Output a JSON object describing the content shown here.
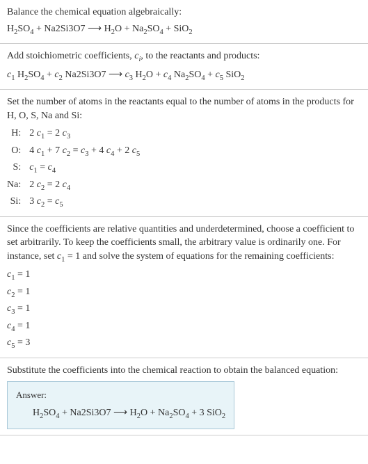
{
  "section1": {
    "heading": "Balance the chemical equation algebraically:",
    "equation_html": "H<sub>2</sub>SO<sub>4</sub> + Na2Si3O7 ⟶ H<sub>2</sub>O + Na<sub>2</sub>SO<sub>4</sub> + SiO<sub>2</sub>"
  },
  "section2": {
    "heading_html": "Add stoichiometric coefficients, <span class=\"italic\">c<sub>i</sub></span>, to the reactants and products:",
    "equation_html": "<span class=\"italic\">c</span><sub>1</sub> H<sub>2</sub>SO<sub>4</sub> + <span class=\"italic\">c</span><sub>2</sub> Na2Si3O7 ⟶ <span class=\"italic\">c</span><sub>3</sub> H<sub>2</sub>O + <span class=\"italic\">c</span><sub>4</sub> Na<sub>2</sub>SO<sub>4</sub> + <span class=\"italic\">c</span><sub>5</sub> SiO<sub>2</sub>"
  },
  "section3": {
    "heading": "Set the number of atoms in the reactants equal to the number of atoms in the products for H, O, S, Na and Si:",
    "atoms": [
      {
        "label": "H:",
        "eq_html": "2 <span class=\"italic\">c</span><sub>1</sub> = 2 <span class=\"italic\">c</span><sub>3</sub>"
      },
      {
        "label": "O:",
        "eq_html": "4 <span class=\"italic\">c</span><sub>1</sub> + 7 <span class=\"italic\">c</span><sub>2</sub> = <span class=\"italic\">c</span><sub>3</sub> + 4 <span class=\"italic\">c</span><sub>4</sub> + 2 <span class=\"italic\">c</span><sub>5</sub>"
      },
      {
        "label": "S:",
        "eq_html": "<span class=\"italic\">c</span><sub>1</sub> = <span class=\"italic\">c</span><sub>4</sub>"
      },
      {
        "label": "Na:",
        "eq_html": "2 <span class=\"italic\">c</span><sub>2</sub> = 2 <span class=\"italic\">c</span><sub>4</sub>"
      },
      {
        "label": "Si:",
        "eq_html": "3 <span class=\"italic\">c</span><sub>2</sub> = <span class=\"italic\">c</span><sub>5</sub>"
      }
    ]
  },
  "section4": {
    "heading_html": "Since the coefficients are relative quantities and underdetermined, choose a coefficient to set arbitrarily. To keep the coefficients small, the arbitrary value is ordinarily one. For instance, set <span class=\"italic\">c</span><sub>1</sub> = 1 and solve the system of equations for the remaining coefficients:",
    "coeffs": [
      "<span class=\"italic\">c</span><sub>1</sub> = 1",
      "<span class=\"italic\">c</span><sub>2</sub> = 1",
      "<span class=\"italic\">c</span><sub>3</sub> = 1",
      "<span class=\"italic\">c</span><sub>4</sub> = 1",
      "<span class=\"italic\">c</span><sub>5</sub> = 3"
    ]
  },
  "section5": {
    "heading": "Substitute the coefficients into the chemical reaction to obtain the balanced equation:",
    "answer_label": "Answer:",
    "answer_equation_html": "H<sub>2</sub>SO<sub>4</sub> + Na2Si3O7 ⟶ H<sub>2</sub>O + Na<sub>2</sub>SO<sub>4</sub> + 3 SiO<sub>2</sub>"
  },
  "styling": {
    "body_width": 529,
    "body_bg": "#ffffff",
    "text_color": "#333333",
    "divider_color": "#cccccc",
    "answer_box_bg": "#e8f4f8",
    "answer_box_border": "#a8c8d8",
    "font_family": "Georgia, 'Times New Roman', serif",
    "base_font_size": 14
  }
}
